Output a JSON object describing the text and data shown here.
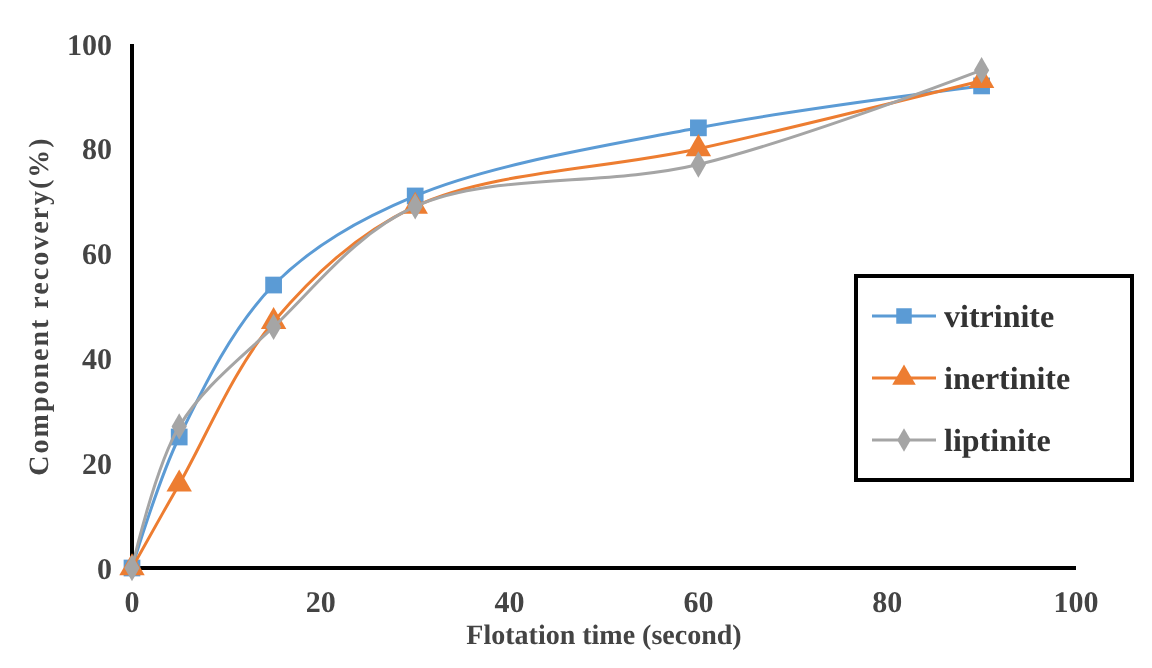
{
  "chart_data": {
    "type": "line",
    "xlabel": "Flotation time (second)",
    "ylabel": "Component recovery(%)",
    "x": [
      0,
      5,
      15,
      30,
      60,
      90
    ],
    "xlim": [
      0,
      100
    ],
    "xticks": [
      0,
      20,
      40,
      60,
      80,
      100
    ],
    "ylim": [
      0,
      100
    ],
    "yticks": [
      0,
      20,
      40,
      60,
      80,
      100
    ],
    "grid": false,
    "legend": "right",
    "series": [
      {
        "name": "vitrinite",
        "color": "#5b9bd5",
        "marker": "square",
        "values": [
          0,
          25,
          54,
          71,
          84,
          92
        ]
      },
      {
        "name": "inertinite",
        "color": "#ed7d31",
        "marker": "triangle",
        "values": [
          0,
          16,
          47,
          69,
          80,
          93
        ]
      },
      {
        "name": "liptinite",
        "color": "#a5a5a5",
        "marker": "diamond",
        "values": [
          0,
          27,
          46,
          69,
          77,
          95
        ]
      }
    ]
  }
}
